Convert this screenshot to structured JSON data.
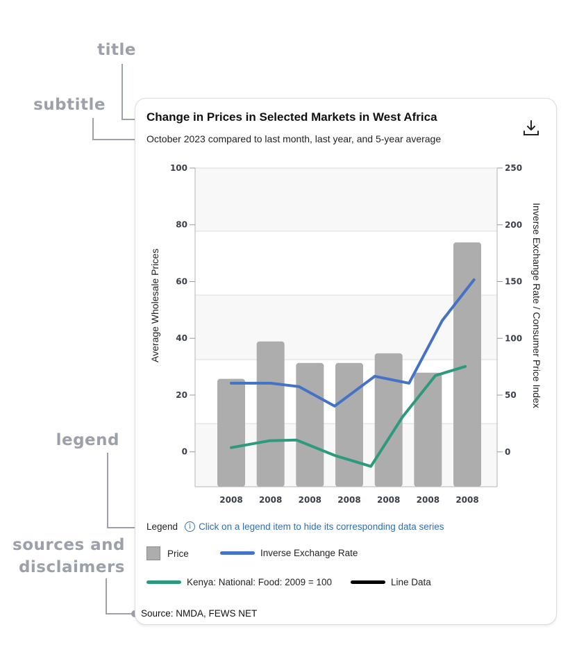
{
  "annotations": {
    "title": "title",
    "subtitle": "subtitle",
    "legend": "legend",
    "sources": "sources and disclaimers"
  },
  "header": {
    "title": "Change in Prices in Selected Markets in West Africa",
    "subtitle": "October 2023 compared to last month, last year, and 5-year average",
    "download_icon": "download-icon"
  },
  "legend": {
    "label": "Legend",
    "hint": "Click on a legend item to hide its corresponding data series",
    "info_icon": "info-icon",
    "items": [
      {
        "label": "Price",
        "type": "box",
        "color": "#adadad"
      },
      {
        "label": "Inverse Exchange Rate",
        "type": "line",
        "color": "#4472c4"
      },
      {
        "label": "Kenya: National: Food: 2009 = 100",
        "type": "line",
        "color": "#2e9a7d"
      },
      {
        "label": "Line Data",
        "type": "line",
        "color": "#000000"
      }
    ]
  },
  "source": "Source: NMDA, FEWS NET",
  "chart_data": {
    "type": "bar",
    "title": "Change in Prices in Selected Markets in West Africa",
    "subtitle": "October 2023 compared to last month, last year, and 5-year average",
    "categories": [
      "2008",
      "2008",
      "2008",
      "2008",
      "2008",
      "2008",
      "2008"
    ],
    "ylabel": "Average Wholesale Prices",
    "y2label": "Inverse Exchange Rate / Consumer Price Index",
    "ylim": [
      -12.3,
      100
    ],
    "y2lim": [
      -30.7,
      250
    ],
    "yticks": [
      0,
      20,
      40,
      60,
      80,
      100
    ],
    "y2ticks": [
      0,
      50,
      100,
      150,
      200,
      250
    ],
    "grid": "alternating horizontal bands",
    "legend_position": "bottom",
    "series": [
      {
        "name": "Price",
        "type": "bar",
        "axis": "left",
        "color": "#adadad",
        "values": [
          25.7,
          38.9,
          31.3,
          31.3,
          34.7,
          27.9,
          73.8
        ]
      },
      {
        "name": "Inverse Exchange Rate",
        "type": "line",
        "axis": "right",
        "color": "#4472c4",
        "x": [
          0,
          1,
          1.72,
          2.63,
          3.65,
          4.52,
          5.36,
          6.17
        ],
        "values": [
          60.5,
          60.5,
          57.5,
          40.3,
          66.6,
          60.5,
          115.5,
          151.6
        ]
      },
      {
        "name": "Kenya: National: Food: 2009 = 100",
        "type": "line",
        "axis": "right",
        "color": "#2e9a7d",
        "x": [
          0,
          0.97,
          1.66,
          2.63,
          3.55,
          4.35,
          5.19,
          5.95
        ],
        "values": [
          3.7,
          9.8,
          10.4,
          -3.1,
          -12.8,
          30.6,
          67.2,
          75.2
        ]
      }
    ]
  }
}
